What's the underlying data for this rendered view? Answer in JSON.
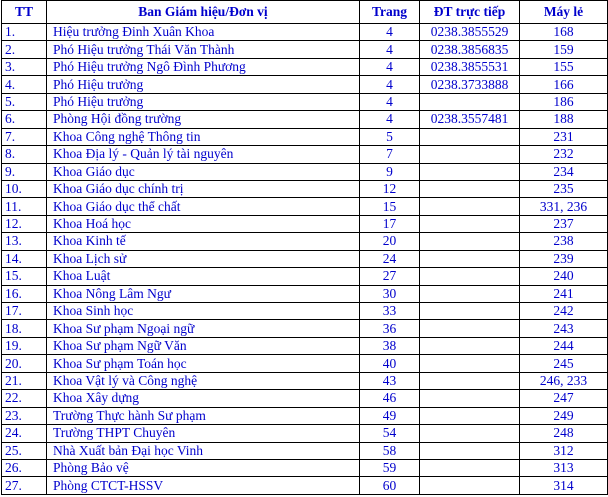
{
  "headers": {
    "tt": "TT",
    "unit": "Ban Giám hiệu/Đơn vị",
    "page": "Trang",
    "phone": "ĐT trực tiếp",
    "ext": "Máy lẻ"
  },
  "rows": [
    {
      "tt": "1.",
      "unit": "Hiệu trưởng Đinh Xuân Khoa",
      "page": "4",
      "phone": "0238.3855529",
      "ext": "168"
    },
    {
      "tt": "2.",
      "unit": "Phó Hiệu trưởng Thái Văn Thành",
      "page": "4",
      "phone": "0238.3856835",
      "ext": "159"
    },
    {
      "tt": "3.",
      "unit": "Phó Hiệu trưởng Ngô Đình Phương",
      "page": "4",
      "phone": "0238.3855531",
      "ext": "155"
    },
    {
      "tt": "4.",
      "unit": "Phó Hiệu trưởng",
      "page": "4",
      "phone": "0238.3733888",
      "ext": "166"
    },
    {
      "tt": "5.",
      "unit": "Phó Hiệu trưởng",
      "page": "4",
      "phone": "",
      "ext": "186"
    },
    {
      "tt": "6.",
      "unit": "Phòng Hội đồng trường",
      "page": "4",
      "phone": "0238.3557481",
      "ext": "188"
    },
    {
      "tt": "7.",
      "unit": "Khoa Công nghệ Thông tin",
      "page": "5",
      "phone": "",
      "ext": "231"
    },
    {
      "tt": "8.",
      "unit": "Khoa Địa lý - Quản lý tài nguyên",
      "page": "7",
      "phone": "",
      "ext": "232"
    },
    {
      "tt": "9.",
      "unit": "Khoa Giáo dục",
      "page": "9",
      "phone": "",
      "ext": "234"
    },
    {
      "tt": "10.",
      "unit": "Khoa Giáo dục chính trị",
      "page": "12",
      "phone": "",
      "ext": "235"
    },
    {
      "tt": "11.",
      "unit": "Khoa Giáo dục thể chất",
      "page": "15",
      "phone": "",
      "ext": "331, 236"
    },
    {
      "tt": "12.",
      "unit": "Khoa Hoá học",
      "page": "17",
      "phone": "",
      "ext": "237"
    },
    {
      "tt": "13.",
      "unit": "Khoa Kinh tế",
      "page": "20",
      "phone": "",
      "ext": "238"
    },
    {
      "tt": "14.",
      "unit": "Khoa Lịch sử",
      "page": "24",
      "phone": "",
      "ext": "239"
    },
    {
      "tt": "15.",
      "unit": "Khoa Luật",
      "page": "27",
      "phone": "",
      "ext": "240"
    },
    {
      "tt": "16.",
      "unit": "Khoa Nông Lâm Ngư",
      "page": "30",
      "phone": "",
      "ext": "241"
    },
    {
      "tt": "17.",
      "unit": "Khoa Sinh học",
      "page": "33",
      "phone": "",
      "ext": "242"
    },
    {
      "tt": "18.",
      "unit": "Khoa Sư phạm Ngoại ngữ",
      "page": "36",
      "phone": "",
      "ext": "243"
    },
    {
      "tt": "19.",
      "unit": "Khoa Sư phạm Ngữ Văn",
      "page": "38",
      "phone": "",
      "ext": "244"
    },
    {
      "tt": "20.",
      "unit": "Khoa Sư phạm Toán học",
      "page": "40",
      "phone": "",
      "ext": "245"
    },
    {
      "tt": "21.",
      "unit": "Khoa Vật lý và Công nghệ",
      "page": "43",
      "phone": "",
      "ext": "246, 233"
    },
    {
      "tt": "22.",
      "unit": "Khoa Xây dựng",
      "page": "46",
      "phone": "",
      "ext": "247"
    },
    {
      "tt": "23.",
      "unit": "Trường Thực hành Sư phạm",
      "page": "49",
      "phone": "",
      "ext": "249"
    },
    {
      "tt": "24.",
      "unit": "Trường THPT Chuyên",
      "page": "54",
      "phone": "",
      "ext": "248"
    },
    {
      "tt": "25.",
      "unit": "Nhà Xuất bản Đại học Vinh",
      "page": "58",
      "phone": "",
      "ext": "312"
    },
    {
      "tt": "26.",
      "unit": "Phòng Bảo vệ",
      "page": "59",
      "phone": "",
      "ext": "313"
    },
    {
      "tt": "27.",
      "unit": "Phòng CTCT-HSSV",
      "page": "60",
      "phone": "",
      "ext": "314"
    }
  ],
  "colors": {
    "text": "#0000cc",
    "border": "#000000",
    "background": "#ffffff"
  }
}
